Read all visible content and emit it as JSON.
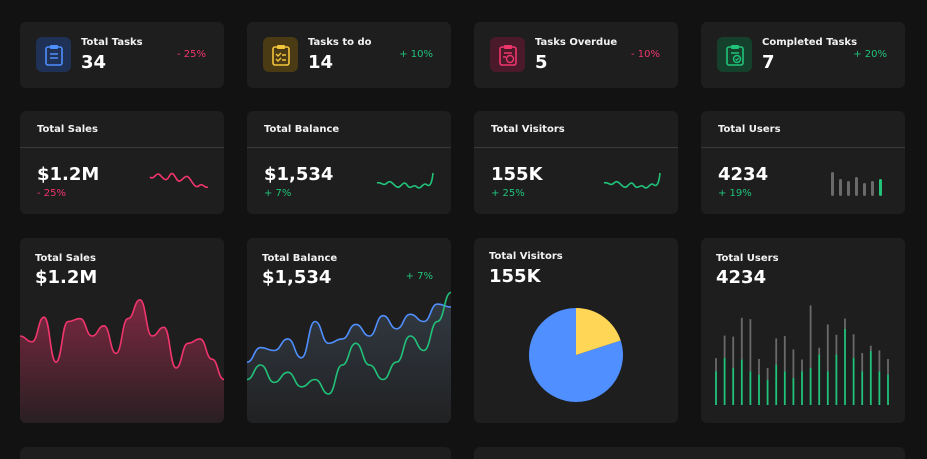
{
  "stats": [
    {
      "label": "Total Tasks",
      "value": "34",
      "change": "- 25%",
      "icon": "clipboard-list-icon",
      "color": "#4f8fff",
      "tone": "neg"
    },
    {
      "label": "Tasks to do",
      "value": "14",
      "change": "+ 10%",
      "icon": "clipboard-check-icon",
      "color": "#f3c53c",
      "tone": "pos"
    },
    {
      "label": "Tasks Overdue",
      "value": "5",
      "change": "- 10%",
      "icon": "clipboard-clock-icon",
      "color": "#f0356d",
      "tone": "neg"
    },
    {
      "label": "Completed Tasks",
      "value": "7",
      "change": "+ 20%",
      "icon": "clipboard-done-icon",
      "color": "#21c27a",
      "tone": "pos"
    }
  ],
  "mini": [
    {
      "label": "Total Sales",
      "value": "$1.2M",
      "change": "- 25%"
    },
    {
      "label": "Total Balance",
      "value": "$1,534",
      "change": "+ 7%"
    },
    {
      "label": "Total Visitors",
      "value": "155K",
      "change": "+ 25%"
    },
    {
      "label": "Total Users",
      "value": "4234",
      "change": "+ 19%"
    }
  ],
  "big": [
    {
      "label": "Total Sales",
      "value": "$1.2M"
    },
    {
      "label": "Total Balance",
      "value": "$1,534",
      "change": "+ 7%"
    },
    {
      "label": "Total Visitors",
      "value": "155K"
    },
    {
      "label": "Total Users",
      "value": "4234"
    }
  ],
  "colors": {
    "red": "#f0356d",
    "green": "#21c27a",
    "blue": "#4f8fff",
    "yellow": "#ffd655",
    "gray": "#6a6a6a"
  },
  "chart_data": [
    {
      "type": "line",
      "title": "Total Sales",
      "series": [
        {
          "values": [
            60,
            56,
            73,
            42,
            70,
            72,
            60,
            67,
            48,
            72,
            85,
            60,
            66,
            38,
            55,
            58,
            44,
            30
          ]
        }
      ],
      "ylim": [
        0,
        100
      ]
    },
    {
      "type": "line",
      "title": "Total Balance",
      "series": [
        {
          "values": [
            42,
            52,
            50,
            58,
            45,
            70,
            55,
            58,
            68,
            60,
            74,
            65,
            75,
            70,
            82,
            80
          ]
        },
        {
          "values": [
            30,
            40,
            28,
            35,
            25,
            30,
            20,
            40,
            55,
            40,
            30,
            42,
            60,
            50,
            70,
            90
          ]
        }
      ],
      "ylim": [
        0,
        100
      ]
    },
    {
      "type": "pie",
      "title": "Total Visitors",
      "values": [
        80,
        20
      ]
    },
    {
      "type": "bar",
      "title": "Total Users",
      "series": [
        {
          "values": [
            10,
            17,
            24,
            32,
            40,
            12,
            9,
            20,
            27,
            22,
            9,
            48,
            5,
            36,
            15,
            8,
            18,
            14,
            4,
            16,
            12
          ]
        },
        {
          "values": [
            20,
            28,
            22,
            27,
            20,
            18,
            15,
            24,
            20,
            16,
            20,
            22,
            30,
            20,
            30,
            45,
            28,
            20,
            32,
            20,
            18
          ]
        }
      ],
      "ylim": [
        0,
        100
      ]
    }
  ]
}
